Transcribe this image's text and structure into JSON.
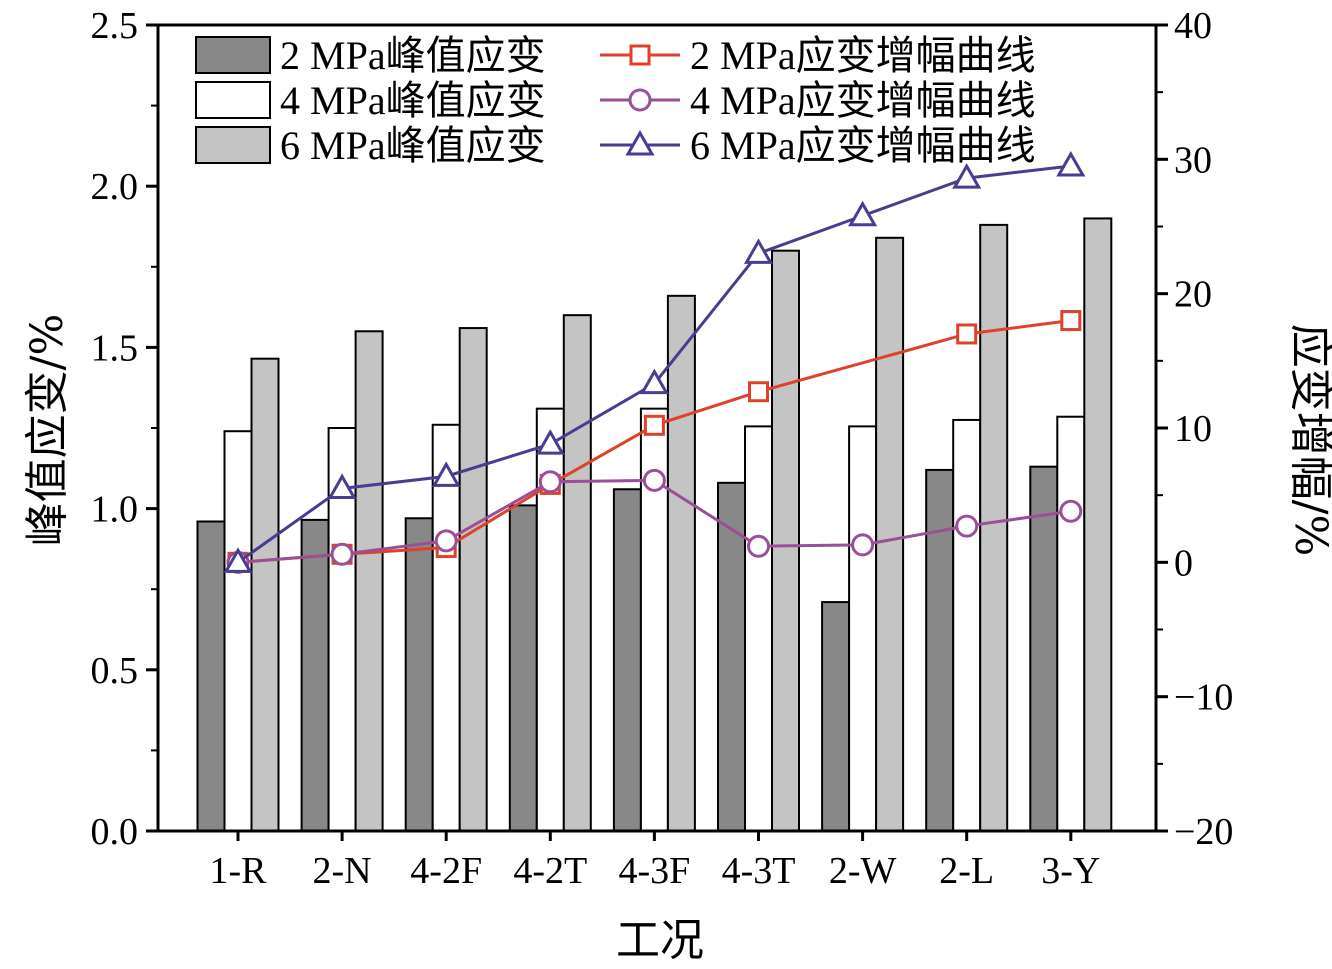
{
  "chart_data": {
    "type": "bar",
    "categories": [
      "1-R",
      "2-N",
      "4-2F",
      "4-2T",
      "4-3F",
      "4-3T",
      "2-W",
      "2-L",
      "3-Y"
    ],
    "xlabel": "工况",
    "ylabel": "峰值应变/%",
    "y2label": "应变增幅/%",
    "ylim": [
      0.0,
      2.5
    ],
    "y2lim": [
      -20,
      40
    ],
    "yticks": [
      0.0,
      0.5,
      1.0,
      1.5,
      2.0,
      2.5
    ],
    "ytick_labels": [
      "0.0",
      "0.5",
      "1.0",
      "1.5",
      "2.0",
      "2.5"
    ],
    "y2ticks": [
      -20,
      -10,
      0,
      10,
      20,
      30,
      40
    ],
    "y2tick_labels": [
      "−20",
      "−10",
      "0",
      "10",
      "20",
      "30",
      "40"
    ],
    "bar_series": [
      {
        "name": "2 MPa峰值应变",
        "color": "#888888",
        "values": [
          0.96,
          0.965,
          0.97,
          1.01,
          1.06,
          1.08,
          0.71,
          1.12,
          1.13
        ]
      },
      {
        "name": "4 MPa峰值应变",
        "color": "#ffffff",
        "values": [
          1.24,
          1.25,
          1.26,
          1.31,
          1.31,
          1.255,
          1.255,
          1.275,
          1.285
        ]
      },
      {
        "name": "6 MPa峰值应变",
        "color": "#c4c4c4",
        "values": [
          1.465,
          1.55,
          1.56,
          1.6,
          1.66,
          1.8,
          1.84,
          1.88,
          1.9
        ]
      }
    ],
    "line_series": [
      {
        "name": "2 MPa应变增幅曲线",
        "color": "#e0412b",
        "marker": "square",
        "x_index": [
          0,
          1,
          2,
          3,
          4,
          5,
          7,
          8
        ],
        "values": [
          0,
          0.6,
          1.1,
          5.8,
          10.2,
          12.7,
          17.0,
          18.0
        ]
      },
      {
        "name": "4 MPa应变增幅曲线",
        "color": "#9b4f96",
        "marker": "circle",
        "x_index": [
          0,
          1,
          2,
          3,
          4,
          5,
          6,
          7,
          8
        ],
        "values": [
          0,
          0.6,
          1.6,
          6.0,
          6.1,
          1.2,
          1.3,
          2.7,
          3.8
        ]
      },
      {
        "name": "6 MPa应变增幅曲线",
        "color": "#4a3d8f",
        "marker": "triangle",
        "x_index": [
          0,
          1,
          2,
          3,
          4,
          5,
          6,
          7,
          8
        ],
        "values": [
          0,
          5.5,
          6.4,
          8.8,
          13.3,
          23.0,
          25.8,
          28.6,
          29.5
        ]
      }
    ]
  }
}
